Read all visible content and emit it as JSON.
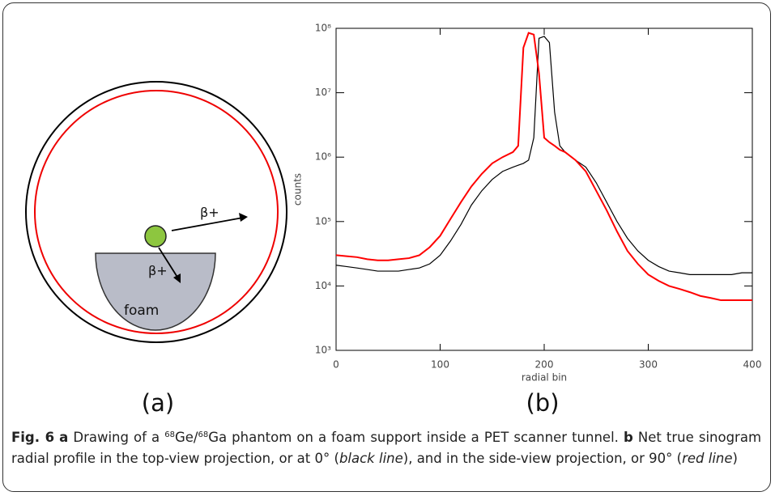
{
  "diagram": {
    "labels": [
      "β+",
      "β+",
      "foam"
    ]
  },
  "panel_labels": [
    "(a)",
    "(b)"
  ],
  "chart_data": {
    "type": "line",
    "xlabel": "radial bin",
    "ylabel": "counts",
    "log_y": true,
    "x": [
      0,
      10,
      20,
      30,
      40,
      50,
      60,
      70,
      80,
      90,
      100,
      110,
      120,
      130,
      140,
      150,
      160,
      170,
      175,
      180,
      185,
      190,
      195,
      200,
      205,
      210,
      215,
      220,
      230,
      240,
      250,
      260,
      270,
      280,
      290,
      300,
      310,
      320,
      330,
      340,
      350,
      360,
      370,
      380,
      390,
      400
    ],
    "series": [
      {
        "color": "#000000",
        "values": [
          21000,
          20000,
          19000,
          18000,
          17000,
          17000,
          17000,
          18000,
          19000,
          22000,
          30000,
          50000,
          90000,
          180000,
          300000,
          450000,
          600000,
          700000,
          750000,
          800000,
          900000,
          2000000,
          70000000,
          75000000,
          60000000,
          5000000,
          1500000,
          1200000,
          900000,
          700000,
          400000,
          200000,
          100000,
          55000,
          35000,
          25000,
          20000,
          17000,
          16000,
          15000,
          15000,
          15000,
          15000,
          15000,
          16000,
          16000
        ]
      },
      {
        "color": "#ff0000",
        "values": [
          30000,
          29000,
          28000,
          26000,
          25000,
          25000,
          26000,
          27000,
          30000,
          40000,
          60000,
          110000,
          200000,
          350000,
          550000,
          800000,
          1000000,
          1200000,
          1500000,
          50000000,
          85000000,
          80000000,
          20000000,
          2000000,
          1700000,
          1500000,
          1300000,
          1200000,
          900000,
          600000,
          300000,
          150000,
          70000,
          35000,
          22000,
          15000,
          12000,
          10000,
          9000,
          8000,
          7000,
          6500,
          6000,
          6000,
          6000,
          6000
        ]
      }
    ],
    "xlim": [
      0,
      400
    ],
    "xticks": [
      0,
      100,
      200,
      300,
      400
    ],
    "ylim": [
      1000,
      100000000
    ],
    "yticks": [
      {
        "value": 1000,
        "label": "10³"
      },
      {
        "value": 10000,
        "label": "10⁴"
      },
      {
        "value": 100000,
        "label": "10⁵"
      },
      {
        "value": 1000000,
        "label": "10⁶"
      },
      {
        "value": 10000000,
        "label": "10⁷"
      },
      {
        "value": 100000000,
        "label": "10⁸"
      }
    ]
  },
  "caption": {
    "runs": [
      "Fig. 6",
      "a",
      "Drawing of a",
      "68",
      "Ge/",
      "68",
      "Ga phantom on a foam support inside a PET scanner tunnel.",
      "b",
      "Net true sinogram radial profile in the top-view projection, or at 0° (",
      "black line",
      "), and in the side-view projection, or 90° (",
      "red line",
      ")"
    ]
  }
}
